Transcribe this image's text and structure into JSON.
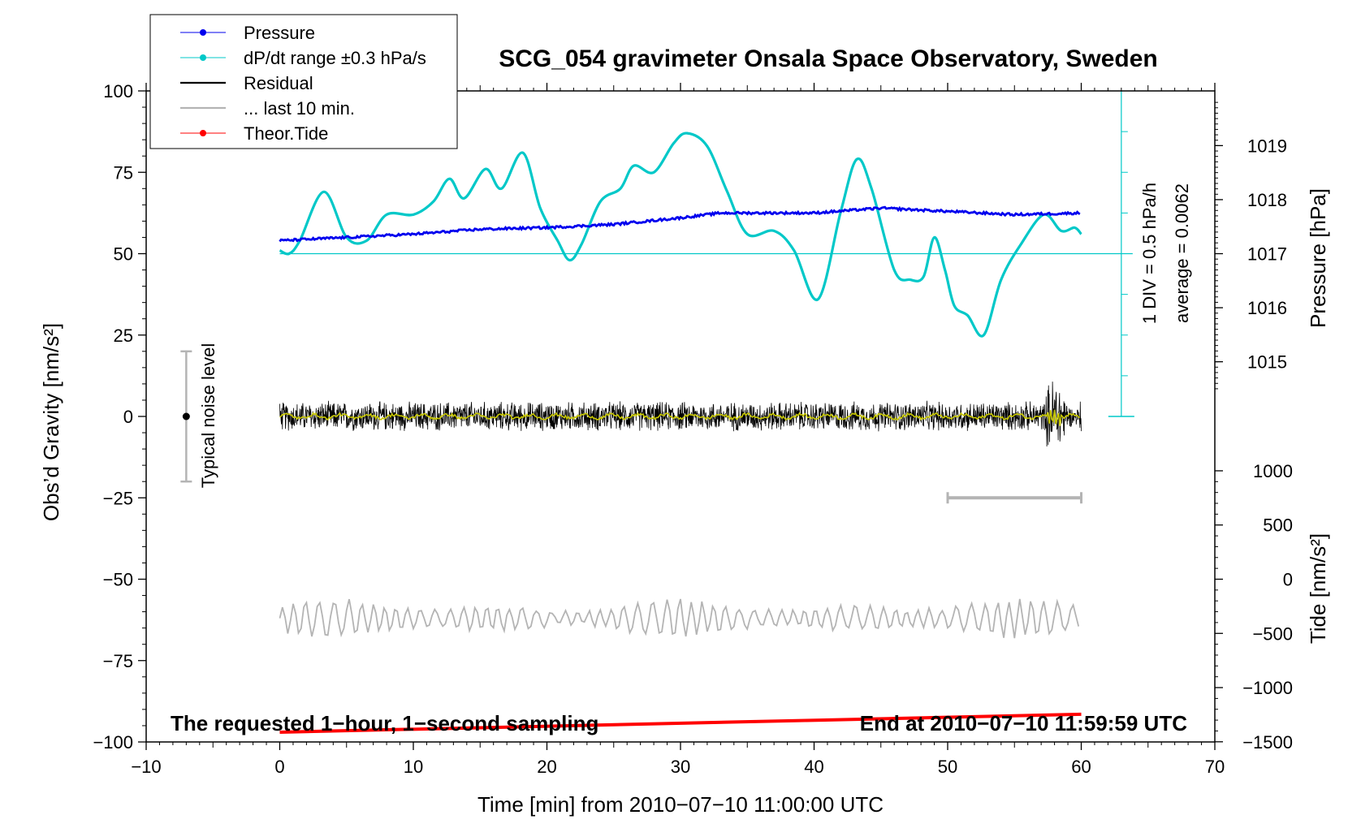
{
  "chart_data": {
    "type": "line",
    "title": "SCG_054 gravimeter Onsala Space Observatory, Sweden",
    "xlabel": "Time [min] from 2010−07−10 11:00:00 UTC",
    "ylabel_left": "Obs’d Gravity [nm/s²]",
    "ylabel_pressure": "Pressure [hPa]",
    "ylabel_tide": "Tide [nm/s²]",
    "xlim": [
      -10,
      70
    ],
    "ylim": [
      -100,
      100
    ],
    "x_ticks": [
      -10,
      0,
      10,
      20,
      30,
      40,
      50,
      60,
      70
    ],
    "x_tick_labels": [
      "−10",
      "0",
      "10",
      "20",
      "30",
      "40",
      "50",
      "60",
      "70"
    ],
    "y_ticks": [
      -100,
      -75,
      -50,
      -25,
      0,
      25,
      50,
      75,
      100
    ],
    "y_tick_labels": [
      "−100",
      "−75",
      "−50",
      "−25",
      "0",
      "25",
      "50",
      "75",
      "100"
    ],
    "pressure_ticks": [
      1015,
      1016,
      1017,
      1018,
      1019
    ],
    "pressure_tick_labels": [
      "1015",
      "1016",
      "1017",
      "1018",
      "1019"
    ],
    "pressure_axis": {
      "value_1017_at_gravity": 50,
      "gravity_per_hPa": 16.6
    },
    "tide_ticks": [
      -1500,
      -1000,
      -500,
      0,
      500,
      1000
    ],
    "tide_tick_labels": [
      "−1500",
      "−1000",
      "−500",
      "0",
      "500",
      "1000"
    ],
    "tide_axis": {
      "value_0_at_gravity": -50,
      "gravity_per_unit": 0.0333
    },
    "legend": [
      {
        "label": "Pressure",
        "color": "#0000ee",
        "marker": true
      },
      {
        "label": "dP/dt range ±0.3 hPa/s",
        "color": "#00c8c8",
        "marker": true
      },
      {
        "label": "Residual",
        "color": "#000000",
        "marker": false
      },
      {
        "label": "... last 10 min.",
        "color": "#b4b4b4",
        "marker": false
      },
      {
        "label": "Theor.Tide",
        "color": "#ff0000",
        "marker": true
      }
    ],
    "series": [
      {
        "name": "Pressure",
        "color": "#0000ee",
        "x": [
          0,
          5,
          10,
          15,
          20,
          25,
          30,
          33,
          37,
          40,
          45,
          50,
          55,
          60
        ],
        "values": [
          54,
          55,
          56,
          57.5,
          58,
          59,
          61,
          62.5,
          62.5,
          62.5,
          64,
          63,
          62,
          62.5
        ]
      },
      {
        "name": "dP/dt",
        "color": "#00c8c8",
        "x": [
          0,
          0.7,
          1.5,
          3.3,
          5,
          6.5,
          8,
          10,
          11.5,
          12.7,
          13.8,
          15.4,
          16.6,
          18.2,
          19.5,
          20.8,
          21.7,
          22.6,
          24,
          25.5,
          26.5,
          28,
          29.5,
          30.5,
          32,
          33.5,
          35,
          37,
          38.5,
          40.3,
          42,
          43.2,
          44.3,
          46,
          47.2,
          48.2,
          49,
          49.8,
          50.5,
          51.5,
          52.7,
          54,
          55.5,
          57.2,
          58.5,
          59.5,
          60
        ],
        "values": [
          51,
          50,
          54,
          69,
          55,
          54,
          62,
          62,
          66,
          73,
          67,
          76,
          70,
          81,
          64,
          54,
          48,
          53,
          66,
          70,
          77,
          75,
          84,
          87,
          83,
          69,
          56,
          57,
          51,
          36,
          63,
          79,
          70,
          45,
          42,
          43,
          55,
          45,
          34,
          31,
          25,
          42,
          53,
          62,
          57,
          58,
          56
        ]
      },
      {
        "name": "Residual",
        "color": "#000000",
        "x_range": [
          0,
          60
        ],
        "amplitude_typical": 5,
        "amplitude_end": 14,
        "mean": 0
      },
      {
        "name": "Residual smoothed",
        "color": "#c8c800",
        "x_range": [
          0,
          60
        ],
        "mean": 0
      },
      {
        "name": "... last 10 min.",
        "color": "#b4b4b4",
        "x_range": [
          0,
          60
        ],
        "center": -62,
        "amplitude": 5
      },
      {
        "name": "Theor.Tide",
        "color": "#ff0000",
        "x": [
          0,
          60
        ],
        "values": [
          -97,
          -91.5
        ]
      }
    ],
    "noise_level": {
      "label": "Typical noise level",
      "x": -7,
      "center": 0,
      "range": [
        -20,
        20
      ]
    },
    "last10_bracket": {
      "x": [
        50,
        60
      ],
      "y": -25
    },
    "dpdt_scale": {
      "div_label": "1 DIV = 0.5 hPa/h",
      "average_label": "average = 0.0062",
      "x": 63,
      "y_range": [
        0,
        100
      ],
      "baseline": 50
    },
    "annotations": {
      "left_note": "The requested 1−hour, 1−second sampling",
      "right_note": "End at 2010−07−10 11:59:59 UTC"
    }
  }
}
